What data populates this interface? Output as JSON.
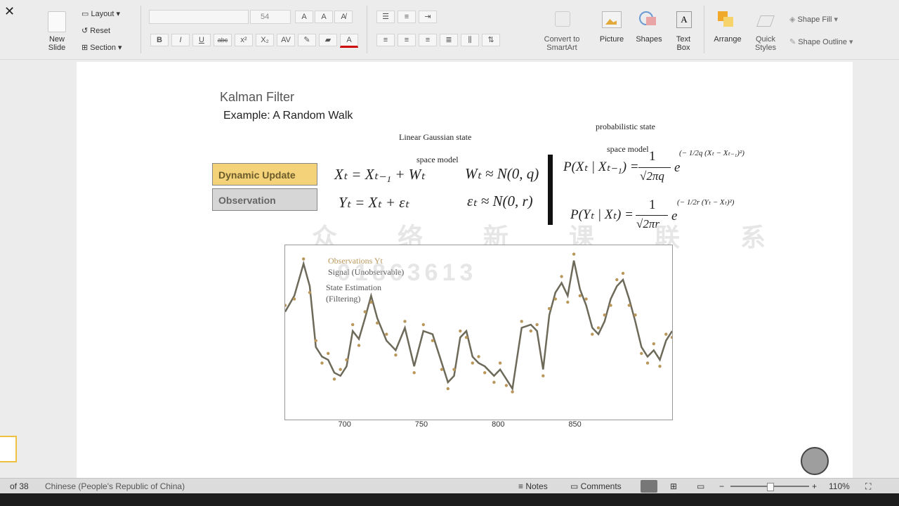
{
  "ribbon": {
    "new_slide": "New\nSlide",
    "layout": "Layout",
    "reset": "Reset",
    "section": "Section",
    "font_size": "54",
    "grow_font": "A",
    "shrink_font": "A",
    "bold": "B",
    "italic": "I",
    "underline": "U",
    "strike": "abc",
    "superscript": "x²",
    "subscript": "X₂",
    "spacing": "AV",
    "font_color": "A",
    "convert_smartart": "Convert to\nSmartArt",
    "picture": "Picture",
    "shapes": "Shapes",
    "text_box": "Text\nBox",
    "arrange": "Arrange",
    "quick_styles": "Quick\nStyles",
    "shape_fill": "Shape Fill",
    "shape_outline": "Shape Outline"
  },
  "slide": {
    "title": "Kalman Filter",
    "subtitle": "Example: A Random Walk",
    "model_label_1": "Linear Gaussian state",
    "model_label_2": "space model",
    "prob_label_1": "probabilistic state",
    "prob_label_2": "space model",
    "dynamic_update": "Dynamic Update",
    "observation": "Observation",
    "colors": {
      "dynamic_box": "#f3d27a",
      "observation_box": "#d6d6d6",
      "series_line": "#6e6a5a",
      "series_points": "#b9975b"
    },
    "equations": {
      "state_eq": "Xₜ = Xₜ₋₁ + Wₜ",
      "state_noise": "Wₜ ≈ N(0, q)",
      "obs_eq": "Yₜ = Xₜ + εₜ",
      "obs_noise": "εₜ ≈ N(0, r)",
      "p_transition": "P(Xₜ | Xₜ₋₁) = ",
      "p_observation": "P(Yₜ | Xₜ) = ",
      "one": "1",
      "sqrt_2piq": "√2πq",
      "sqrt_2pir": "√2πr",
      "e": "e",
      "exp_q": "(− 1/2q (Xₜ − Xₜ₋₁)²)",
      "exp_r": "(− 1/2r (Yₜ − Xₜ)²)"
    },
    "watermark_chars": "众 络 新 课 联 系",
    "watermark_number": "01863613"
  },
  "chart_data": {
    "type": "line",
    "legend": [
      "Observations Yt",
      "Signal (Unobservable)",
      "State Estimation",
      "(Filtering)"
    ],
    "xticks": [
      "700",
      "750",
      "800",
      "850"
    ],
    "xlim": [
      660,
      912
    ],
    "ylim": [
      0,
      1
    ],
    "x": [
      660,
      666,
      672,
      676,
      680,
      684,
      688,
      692,
      696,
      700,
      704,
      708,
      712,
      716,
      720,
      726,
      732,
      738,
      744,
      750,
      756,
      762,
      766,
      770,
      774,
      778,
      782,
      786,
      790,
      796,
      800,
      804,
      808,
      814,
      820,
      824,
      828,
      832,
      836,
      840,
      844,
      848,
      852,
      856,
      860,
      864,
      868,
      872,
      876,
      880,
      884,
      888,
      892,
      896,
      900,
      904,
      908,
      912
    ],
    "series": [
      {
        "name": "Signal (Unobservable)",
        "values": [
          0.62,
          0.72,
          0.92,
          0.78,
          0.4,
          0.34,
          0.32,
          0.24,
          0.22,
          0.28,
          0.5,
          0.45,
          0.58,
          0.72,
          0.58,
          0.44,
          0.38,
          0.52,
          0.28,
          0.5,
          0.48,
          0.3,
          0.18,
          0.22,
          0.46,
          0.5,
          0.34,
          0.3,
          0.28,
          0.22,
          0.26,
          0.2,
          0.14,
          0.52,
          0.54,
          0.5,
          0.26,
          0.6,
          0.74,
          0.8,
          0.72,
          0.94,
          0.76,
          0.66,
          0.52,
          0.48,
          0.56,
          0.7,
          0.78,
          0.82,
          0.7,
          0.56,
          0.4,
          0.34,
          0.38,
          0.32,
          0.44,
          0.5
        ]
      },
      {
        "name": "Observations Yt",
        "values": [
          0.66,
          0.7,
          0.95,
          0.74,
          0.44,
          0.3,
          0.36,
          0.2,
          0.26,
          0.32,
          0.54,
          0.41,
          0.62,
          0.68,
          0.55,
          0.48,
          0.35,
          0.56,
          0.24,
          0.54,
          0.44,
          0.26,
          0.14,
          0.26,
          0.5,
          0.46,
          0.3,
          0.34,
          0.24,
          0.18,
          0.3,
          0.16,
          0.12,
          0.56,
          0.5,
          0.54,
          0.22,
          0.64,
          0.7,
          0.84,
          0.68,
          0.98,
          0.72,
          0.7,
          0.48,
          0.52,
          0.6,
          0.66,
          0.82,
          0.86,
          0.66,
          0.6,
          0.36,
          0.3,
          0.42,
          0.28,
          0.48,
          0.46
        ]
      }
    ]
  },
  "status": {
    "slide_of": "of 38",
    "language": "Chinese (People's Republic of China)",
    "notes": "Notes",
    "comments": "Comments",
    "zoom": "110%"
  }
}
